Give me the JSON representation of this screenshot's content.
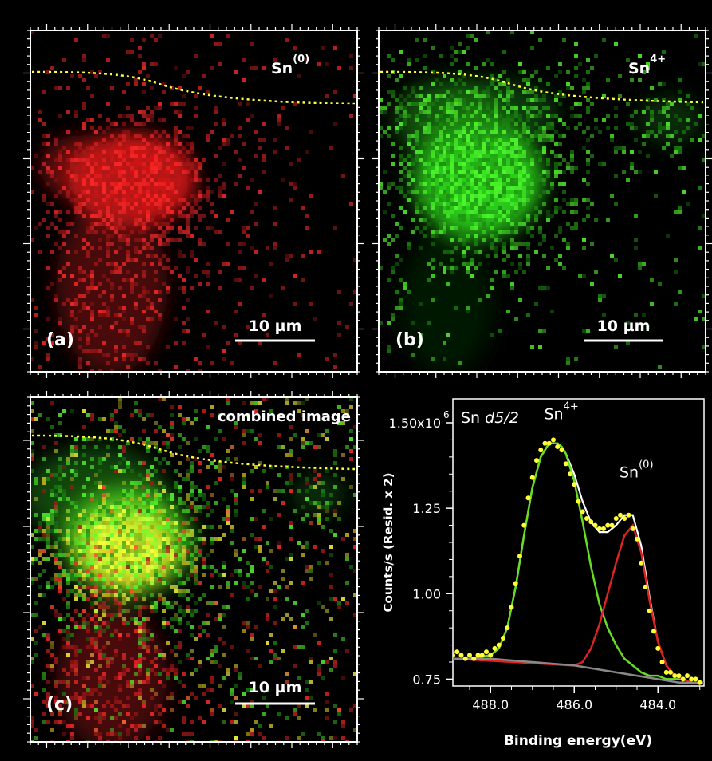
{
  "colors": {
    "red_channel": "#ff2020",
    "green_channel": "#40ff20",
    "boundary": "#ffff33",
    "frame": "#ffffff",
    "fit_total": "#ffffff",
    "fit_sn4": "#66dd22",
    "fit_sn0": "#dd2222",
    "fit_background": "#888888",
    "data_points": "#ffff33"
  },
  "panels": [
    {
      "id": "a",
      "label": "(a)",
      "species": "Sn",
      "species_sup": "(0)",
      "channel": "red",
      "scale_bar": "10 µm"
    },
    {
      "id": "b",
      "label": "(b)",
      "species": "Sn",
      "species_sup": "4+",
      "channel": "green",
      "scale_bar": "10 µm"
    },
    {
      "id": "c",
      "label": "(c)",
      "title": "combined image",
      "channel": "combined",
      "scale_bar": "10 µm"
    }
  ],
  "chart_data": {
    "type": "scatter",
    "title": "Sn d5/2",
    "title_main": "Sn ",
    "title_sub": "d5/2",
    "xlabel": "Binding energy(eV)",
    "ylabel": "Counts/s (Resid. x 2)",
    "xlim": [
      488.9,
      482.9
    ],
    "ylim": [
      0.73,
      1.57
    ],
    "x_ticks": [
      488.0,
      486.0,
      484.0
    ],
    "x_tick_labels": [
      "488.0",
      "486.0",
      "484.0"
    ],
    "y_ticks": [
      0.75,
      1.0,
      1.25,
      1.5
    ],
    "y_tick_labels": [
      "0.75",
      "1.00",
      "1.25",
      "1.50x10"
    ],
    "y_exponent": "6",
    "y_unit_scale": 1000000,
    "annotations": [
      {
        "text": "Sn",
        "sup": "4+",
        "x": 486.3,
        "y": 1.51
      },
      {
        "text": "Sn",
        "sup": "(0)",
        "x": 484.5,
        "y": 1.34
      }
    ],
    "series": [
      {
        "role": "data",
        "style": "points",
        "color": "#ffff33",
        "x": [
          488.9,
          488.8,
          488.7,
          488.6,
          488.5,
          488.4,
          488.3,
          488.2,
          488.1,
          488.0,
          487.9,
          487.8,
          487.7,
          487.6,
          487.5,
          487.4,
          487.3,
          487.2,
          487.1,
          487.0,
          486.9,
          486.8,
          486.7,
          486.6,
          486.5,
          486.4,
          486.3,
          486.2,
          486.1,
          486.0,
          485.9,
          485.8,
          485.7,
          485.6,
          485.5,
          485.4,
          485.3,
          485.2,
          485.1,
          485.0,
          484.9,
          484.8,
          484.7,
          484.6,
          484.5,
          484.4,
          484.3,
          484.2,
          484.1,
          484.0,
          483.9,
          483.8,
          483.7,
          483.6,
          483.5,
          483.4,
          483.3,
          483.2,
          483.1,
          483.0
        ],
        "y": [
          0.82,
          0.83,
          0.82,
          0.81,
          0.82,
          0.81,
          0.82,
          0.82,
          0.83,
          0.82,
          0.84,
          0.85,
          0.87,
          0.9,
          0.96,
          1.03,
          1.11,
          1.2,
          1.28,
          1.34,
          1.39,
          1.42,
          1.44,
          1.44,
          1.45,
          1.43,
          1.42,
          1.38,
          1.35,
          1.32,
          1.27,
          1.24,
          1.22,
          1.21,
          1.2,
          1.19,
          1.19,
          1.2,
          1.2,
          1.22,
          1.23,
          1.22,
          1.23,
          1.19,
          1.16,
          1.09,
          1.02,
          0.95,
          0.89,
          0.84,
          0.8,
          0.77,
          0.77,
          0.76,
          0.76,
          0.75,
          0.76,
          0.75,
          0.75,
          0.74
        ]
      },
      {
        "role": "envelope",
        "style": "line",
        "color": "#ffffff",
        "x": [
          488.9,
          488.5,
          488.0,
          487.8,
          487.6,
          487.4,
          487.2,
          487.0,
          486.8,
          486.6,
          486.4,
          486.3,
          486.2,
          486.0,
          485.8,
          485.6,
          485.4,
          485.2,
          485.0,
          484.8,
          484.6,
          484.4,
          484.2,
          484.0,
          483.8,
          483.6,
          483.4,
          483.2,
          482.9
        ],
        "y": [
          0.81,
          0.81,
          0.82,
          0.84,
          0.9,
          1.02,
          1.17,
          1.31,
          1.4,
          1.44,
          1.44,
          1.43,
          1.41,
          1.35,
          1.27,
          1.21,
          1.18,
          1.18,
          1.2,
          1.23,
          1.23,
          1.14,
          0.99,
          0.86,
          0.79,
          0.76,
          0.75,
          0.74,
          0.74
        ]
      },
      {
        "role": "component",
        "name": "Sn 4+",
        "style": "line",
        "color": "#66dd22",
        "x": [
          488.9,
          488.5,
          488.0,
          487.8,
          487.6,
          487.4,
          487.2,
          487.0,
          486.8,
          486.6,
          486.4,
          486.3,
          486.2,
          486.0,
          485.8,
          485.6,
          485.4,
          485.2,
          485.0,
          484.8,
          484.6,
          484.4,
          484.2,
          484.0,
          483.8,
          483.6,
          483.4,
          483.2,
          482.9
        ],
        "y": [
          0.81,
          0.81,
          0.82,
          0.84,
          0.9,
          1.02,
          1.17,
          1.31,
          1.4,
          1.44,
          1.44,
          1.43,
          1.41,
          1.33,
          1.21,
          1.08,
          0.97,
          0.9,
          0.85,
          0.81,
          0.79,
          0.77,
          0.76,
          0.76,
          0.75,
          0.75,
          0.75,
          0.74,
          0.74
        ]
      },
      {
        "role": "component",
        "name": "Sn (0)",
        "style": "line",
        "color": "#dd2222",
        "x": [
          488.9,
          486.0,
          485.8,
          485.6,
          485.4,
          485.2,
          485.0,
          484.8,
          484.6,
          484.4,
          484.2,
          484.0,
          483.8,
          483.6,
          483.4,
          483.2,
          482.9
        ],
        "y": [
          0.81,
          0.79,
          0.8,
          0.84,
          0.91,
          1.0,
          1.09,
          1.17,
          1.2,
          1.12,
          0.98,
          0.86,
          0.79,
          0.76,
          0.75,
          0.74,
          0.74
        ]
      },
      {
        "role": "background",
        "style": "line",
        "color": "#888888",
        "x": [
          488.9,
          488.0,
          487.0,
          486.0,
          485.0,
          484.5,
          484.0,
          483.5,
          483.0,
          482.9
        ],
        "y": [
          0.81,
          0.81,
          0.8,
          0.79,
          0.77,
          0.76,
          0.75,
          0.74,
          0.74,
          0.74
        ]
      }
    ]
  }
}
